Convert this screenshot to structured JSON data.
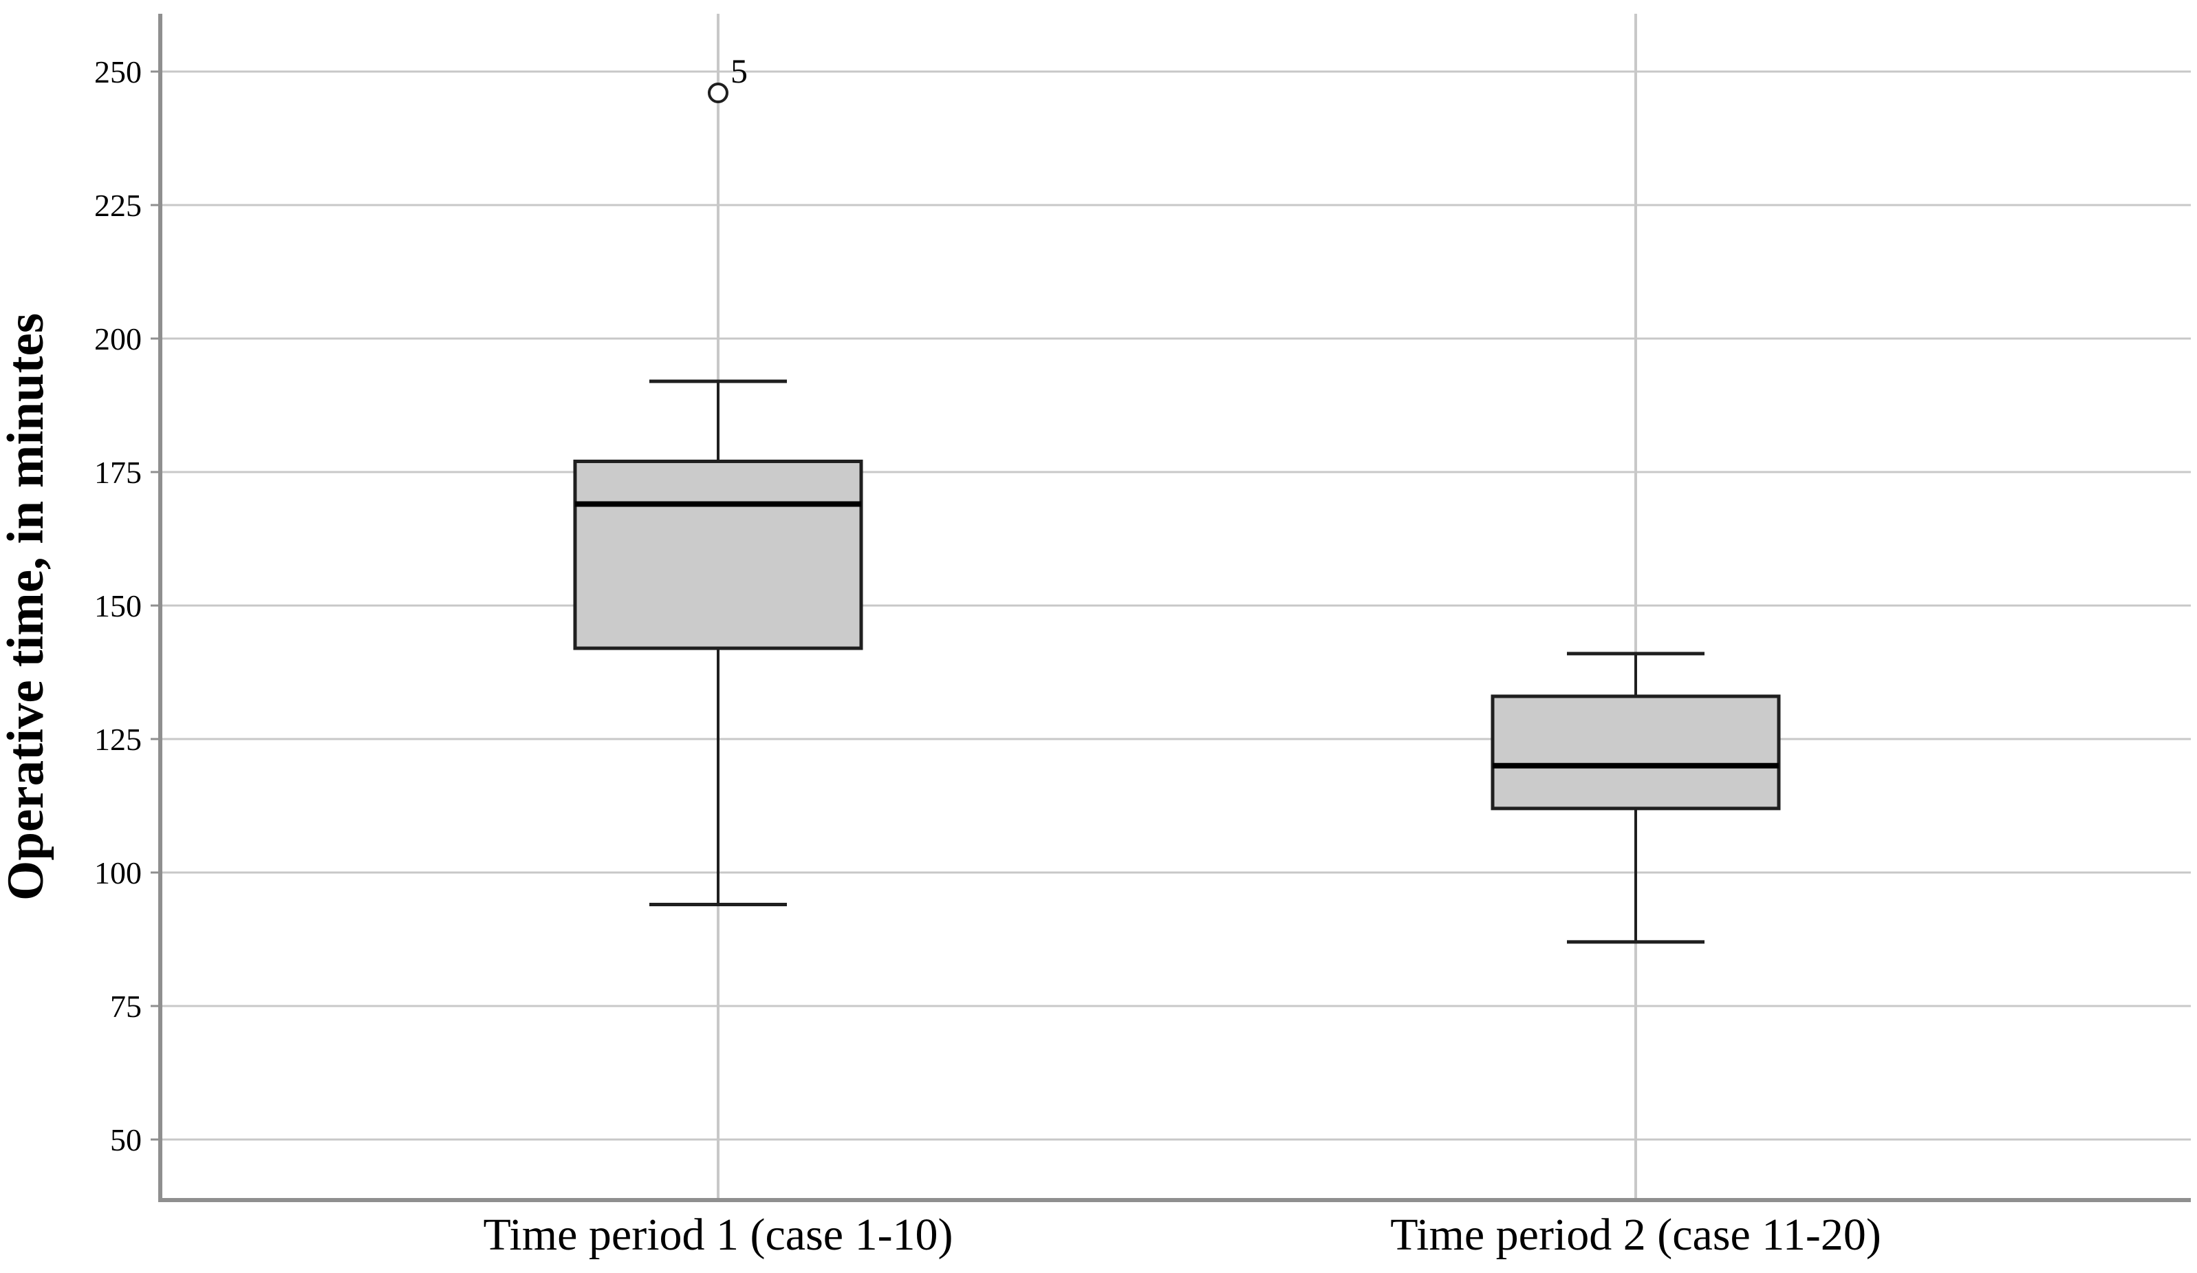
{
  "chart_data": {
    "type": "boxplot",
    "title": "",
    "xlabel": "",
    "ylabel": "Operative time, in minutes",
    "ylim": [
      40,
      261
    ],
    "yticks": [
      50,
      75,
      100,
      125,
      150,
      175,
      200,
      225,
      250
    ],
    "grid": true,
    "legend": "none",
    "categories": [
      "Time period 1 (case 1-10)",
      "Time period 2 (case 11-20)"
    ],
    "series": [
      {
        "name": "Time period 1 (case 1-10)",
        "whisker_low": 94,
        "q1": 142,
        "median": 169,
        "q3": 177,
        "whisker_high": 192,
        "outliers": [
          {
            "value": 246,
            "label": "5"
          }
        ]
      },
      {
        "name": "Time period 2 (case 11-20)",
        "whisker_low": 87,
        "q1": 112,
        "median": 120,
        "q3": 133,
        "whisker_high": 141,
        "outliers": []
      }
    ],
    "colors": {
      "background": "#ffffff",
      "box_fill": "#cbcbcb",
      "box_border": "#1f1f1f",
      "median": "#000000",
      "whisker": "#1f1f1f",
      "gridline": "#c8c8c8",
      "axis": "#8f8f8f",
      "text": "#000000"
    }
  }
}
